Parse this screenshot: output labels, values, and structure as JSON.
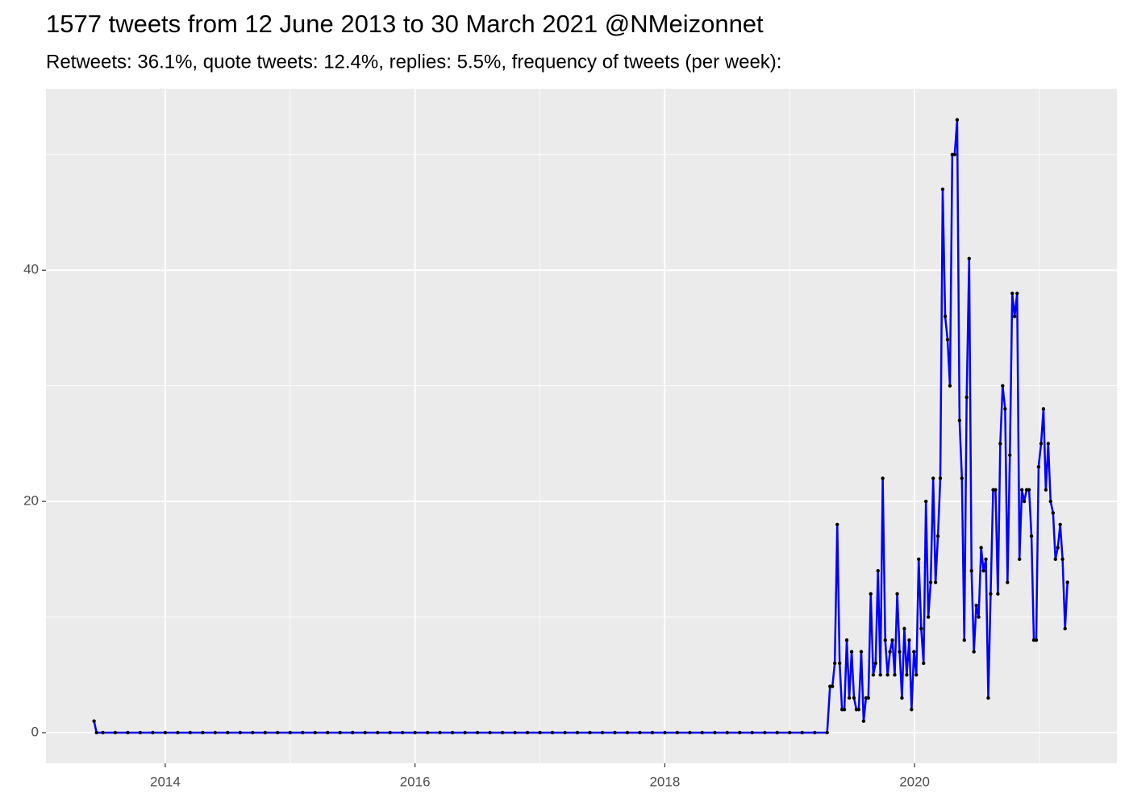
{
  "chart_data": {
    "type": "line",
    "title": "1577 tweets from 12 June 2013 to 30 March 2021 @NMeizonnet",
    "subtitle": "Retweets: 36.1%, quote tweets: 12.4%, replies: 5.5%, frequency of tweets (per week):",
    "color": "#0000ff",
    "point_color": "#000000",
    "grid": true,
    "xlim": [
      2013.045,
      2021.62
    ],
    "xticks": [
      2014,
      2016,
      2018,
      2020
    ],
    "minor_xticks": [
      2013,
      2015,
      2017,
      2019,
      2021
    ],
    "ylim": [
      -2.65,
      55.7
    ],
    "yticks": [
      0,
      20,
      40
    ],
    "minor_yticks": [
      10,
      30,
      50
    ],
    "x": [
      2013.43,
      2013.45,
      2013.5,
      2013.6,
      2013.7,
      2013.8,
      2013.9,
      2014.0,
      2014.1,
      2014.2,
      2014.3,
      2014.4,
      2014.5,
      2014.6,
      2014.7,
      2014.8,
      2014.9,
      2015.0,
      2015.1,
      2015.2,
      2015.3,
      2015.4,
      2015.5,
      2015.6,
      2015.7,
      2015.8,
      2015.9,
      2016.0,
      2016.1,
      2016.2,
      2016.3,
      2016.4,
      2016.5,
      2016.6,
      2016.7,
      2016.8,
      2016.9,
      2017.0,
      2017.1,
      2017.2,
      2017.3,
      2017.4,
      2017.5,
      2017.6,
      2017.7,
      2017.8,
      2017.9,
      2018.0,
      2018.1,
      2018.2,
      2018.3,
      2018.4,
      2018.5,
      2018.6,
      2018.7,
      2018.8,
      2018.9,
      2019.0,
      2019.1,
      2019.2,
      2019.3,
      2019.323,
      2019.342,
      2019.361,
      2019.381,
      2019.4,
      2019.419,
      2019.438,
      2019.457,
      2019.477,
      2019.496,
      2019.515,
      2019.534,
      2019.553,
      2019.573,
      2019.592,
      2019.611,
      2019.63,
      2019.649,
      2019.669,
      2019.688,
      2019.707,
      2019.726,
      2019.745,
      2019.765,
      2019.784,
      2019.803,
      2019.822,
      2019.841,
      2019.861,
      2019.88,
      2019.899,
      2019.918,
      2019.937,
      2019.957,
      2019.976,
      2019.995,
      2020.014,
      2020.033,
      2020.053,
      2020.072,
      2020.091,
      2020.11,
      2020.129,
      2020.149,
      2020.168,
      2020.187,
      2020.206,
      2020.225,
      2020.245,
      2020.264,
      2020.283,
      2020.302,
      2020.321,
      2020.341,
      2020.36,
      2020.379,
      2020.398,
      2020.417,
      2020.437,
      2020.456,
      2020.475,
      2020.494,
      2020.513,
      2020.533,
      2020.552,
      2020.571,
      2020.59,
      2020.609,
      2020.629,
      2020.648,
      2020.667,
      2020.686,
      2020.705,
      2020.725,
      2020.744,
      2020.763,
      2020.782,
      2020.801,
      2020.821,
      2020.84,
      2020.859,
      2020.878,
      2020.897,
      2020.917,
      2020.936,
      2020.955,
      2020.974,
      2020.993,
      2021.013,
      2021.032,
      2021.051,
      2021.07,
      2021.089,
      2021.109,
      2021.128,
      2021.147,
      2021.166,
      2021.185,
      2021.205,
      2021.224
    ],
    "values": [
      1,
      0,
      0,
      0,
      0,
      0,
      0,
      0,
      0,
      0,
      0,
      0,
      0,
      0,
      0,
      0,
      0,
      0,
      0,
      0,
      0,
      0,
      0,
      0,
      0,
      0,
      0,
      0,
      0,
      0,
      0,
      0,
      0,
      0,
      0,
      0,
      0,
      0,
      0,
      0,
      0,
      0,
      0,
      0,
      0,
      0,
      0,
      0,
      0,
      0,
      0,
      0,
      0,
      0,
      0,
      0,
      0,
      0,
      0,
      0,
      0,
      4,
      4,
      6,
      18,
      6,
      2,
      2,
      8,
      3,
      7,
      3,
      2,
      2,
      7,
      1,
      3,
      3,
      12,
      5,
      6,
      14,
      5,
      22,
      8,
      5,
      7,
      8,
      5,
      12,
      7,
      3,
      9,
      5,
      8,
      2,
      7,
      5,
      15,
      9,
      6,
      20,
      10,
      13,
      22,
      13,
      17,
      22,
      47,
      36,
      34,
      30,
      50,
      50,
      53,
      27,
      22,
      8,
      29,
      41,
      14,
      7,
      11,
      10,
      16,
      14,
      15,
      3,
      12,
      21,
      21,
      12,
      25,
      30,
      28,
      13,
      24,
      38,
      36,
      38,
      15,
      21,
      20,
      21,
      21,
      17,
      8,
      8,
      23,
      25,
      28,
      21,
      25,
      20,
      19,
      15,
      16,
      18,
      15,
      9,
      13
    ]
  }
}
